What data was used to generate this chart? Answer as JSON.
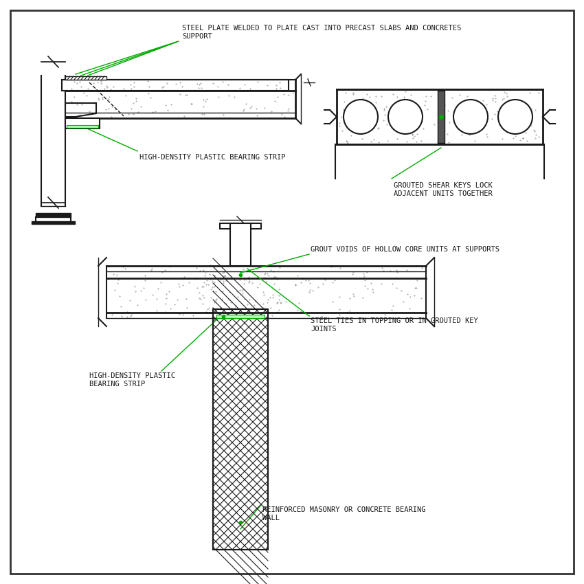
{
  "bg_color": "#f0f0f0",
  "border_color": "#333333",
  "line_color": "#1a1a1a",
  "green_color": "#00aa00",
  "hatch_color": "#555555",
  "text_color": "#1a1a1a",
  "labels": {
    "title1": "STEEL PLATE WELDED TO PLATE CAST INTO PRECAST SLABS AND CONCRETES\nSUPPORT",
    "label1": "HIGH-DENSITY PLASTIC BEARING STRIP",
    "label2": "GROUTED SHEAR KEYS LOCK\nADJACENT UNITS TOGETHER",
    "label3": "GROUT VOIDS OF HOLLOW CORE UNITS AT SUPPORTS",
    "label4": "STEEL TIES IN TOPPING OR IN GROUTED KEY\nJOINTS",
    "label5": "HIGH-DENSITY PLASTIC\nBEARING STRIP",
    "label6": "REINFORCED MASONRY OR CONCRETE BEARING\nWALL"
  },
  "font_size": 7.5
}
